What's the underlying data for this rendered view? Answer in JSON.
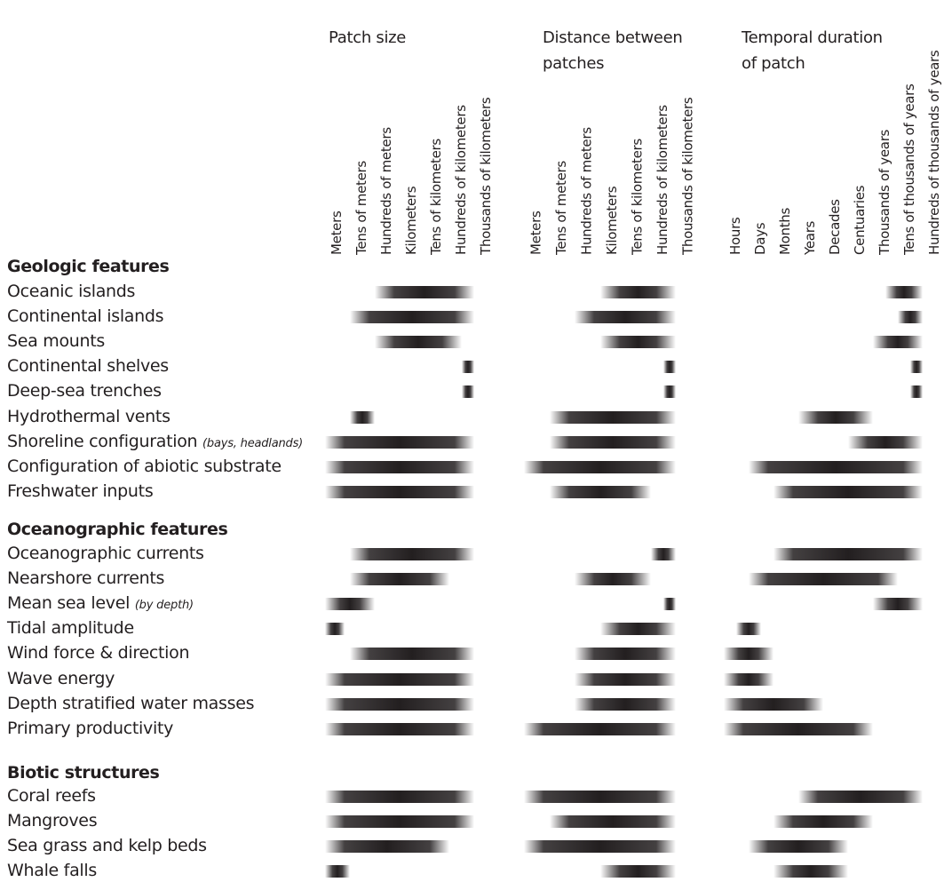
{
  "chart_data": {
    "type": "range",
    "groups": [
      {
        "title_lines": [
          "Patch size"
        ],
        "categories": [
          "Meters",
          "Tens of meters",
          "Hundreds of meters",
          "Kilometers",
          "Tens of kilometers",
          "Hundreds of kilometers",
          "Thousands of kilometers"
        ]
      },
      {
        "title_lines": [
          "Distance between",
          "patches"
        ],
        "categories": [
          "Meters",
          "Tens of meters",
          "Hundreds of meters",
          "Kilometers",
          "Tens of kilometers",
          "Hundreds of kilometers",
          "Thousands of kilometers"
        ]
      },
      {
        "title_lines": [
          "Temporal duration",
          "of patch"
        ],
        "categories": [
          "Hours",
          "Days",
          "Months",
          "Years",
          "Decades",
          "Centuaries",
          "Thousands of years",
          "Tens of thousands of years",
          "Hundreds of thousands of years"
        ]
      }
    ],
    "sections": [
      {
        "title": "Geologic features",
        "rows": [
          {
            "label": "Oceanic islands",
            "note": "",
            "ranges": [
              [
                2,
                6
              ],
              [
                3,
                6
              ],
              [
                6.5,
                8
              ]
            ]
          },
          {
            "label": "Continental islands",
            "note": "",
            "ranges": [
              [
                1,
                6
              ],
              [
                2,
                6
              ],
              [
                7,
                8
              ]
            ]
          },
          {
            "label": "Sea mounts",
            "note": "",
            "ranges": [
              [
                2,
                5.5
              ],
              [
                3,
                6
              ],
              [
                6,
                8
              ]
            ]
          },
          {
            "label": "Continental shelves",
            "note": "",
            "ranges": [
              [
                5.5,
                6
              ],
              [
                5.5,
                6
              ],
              [
                7.5,
                8
              ]
            ]
          },
          {
            "label": "Deep-sea trenches",
            "note": "",
            "ranges": [
              [
                5.5,
                6
              ],
              [
                5.5,
                6
              ],
              [
                7.5,
                8
              ]
            ]
          },
          {
            "label": "Hydrothermal vents",
            "note": "",
            "ranges": [
              [
                1,
                2
              ],
              [
                1,
                6
              ],
              [
                3,
                6
              ]
            ]
          },
          {
            "label": "Shoreline configuration",
            "note": "(bays, headlands)",
            "ranges": [
              [
                0,
                6
              ],
              [
                1,
                6
              ],
              [
                5,
                8
              ]
            ]
          },
          {
            "label": "Configuration of abiotic substrate",
            "note": "",
            "ranges": [
              [
                0,
                6
              ],
              [
                0,
                6
              ],
              [
                1,
                8
              ]
            ]
          },
          {
            "label": "Freshwater inputs",
            "note": "",
            "ranges": [
              [
                0,
                6
              ],
              [
                1,
                5
              ],
              [
                2,
                8
              ]
            ]
          }
        ]
      },
      {
        "title": "Oceanographic features",
        "rows": [
          {
            "label": "Oceanographic currents",
            "note": "",
            "ranges": [
              [
                1,
                6
              ],
              [
                5,
                6
              ],
              [
                2,
                8
              ]
            ]
          },
          {
            "label": "Nearshore currents",
            "note": "",
            "ranges": [
              [
                1,
                5
              ],
              [
                2,
                5
              ],
              [
                1,
                7
              ]
            ]
          },
          {
            "label": "Mean sea level",
            "note": "(by depth)",
            "ranges": [
              [
                0,
                2
              ],
              [
                5.5,
                6
              ],
              [
                6,
                8
              ]
            ]
          },
          {
            "label": "Tidal amplitude",
            "note": "",
            "ranges": [
              [
                0,
                0.8
              ],
              [
                3,
                6
              ],
              [
                0.5,
                1.5
              ]
            ]
          },
          {
            "label": "Wind force & direction",
            "note": "",
            "ranges": [
              [
                1,
                6
              ],
              [
                2,
                6
              ],
              [
                0,
                2
              ]
            ]
          },
          {
            "label": "Wave energy",
            "note": "",
            "ranges": [
              [
                0,
                6
              ],
              [
                2,
                6
              ],
              [
                0,
                2
              ]
            ]
          },
          {
            "label": "Depth stratified water masses",
            "note": "",
            "ranges": [
              [
                0,
                6
              ],
              [
                2,
                6
              ],
              [
                0,
                4
              ]
            ]
          },
          {
            "label": "Primary productivity",
            "note": "",
            "ranges": [
              [
                0,
                6
              ],
              [
                0,
                6
              ],
              [
                0,
                6
              ]
            ]
          }
        ]
      },
      {
        "title": "Biotic structures",
        "rows": [
          {
            "label": "Coral reefs",
            "note": "",
            "ranges": [
              [
                0,
                6
              ],
              [
                0,
                6
              ],
              [
                3,
                8
              ]
            ]
          },
          {
            "label": "Mangroves",
            "note": "",
            "ranges": [
              [
                0,
                6
              ],
              [
                1,
                6
              ],
              [
                2,
                6
              ]
            ]
          },
          {
            "label": "Sea grass and kelp beds",
            "note": "",
            "ranges": [
              [
                0,
                5
              ],
              [
                0,
                6
              ],
              [
                1,
                5
              ]
            ]
          },
          {
            "label": "Whale falls",
            "note": "",
            "ranges": [
              [
                0,
                1
              ],
              [
                3,
                6
              ],
              [
                2,
                5
              ]
            ]
          }
        ]
      }
    ]
  }
}
